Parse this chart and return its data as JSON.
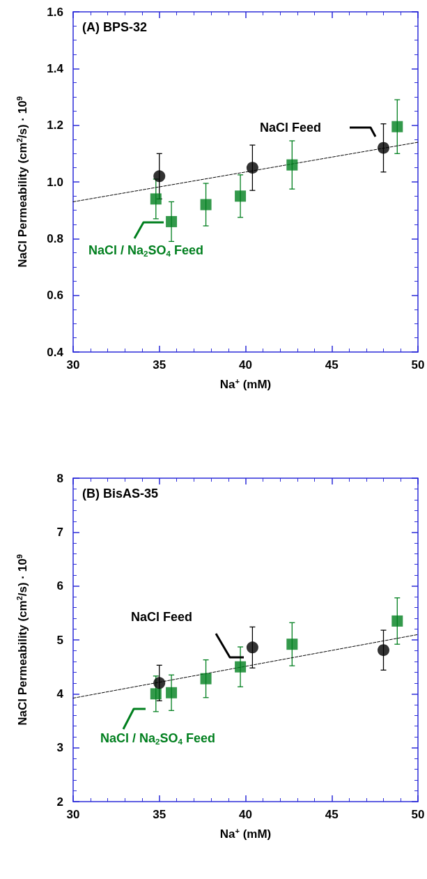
{
  "chart_data": [
    {
      "type": "scatter",
      "title": "(A) BPS-32",
      "xlabel": "Na$^{+}$ (mM)",
      "ylabel": "NaCl Permeability (cm$^{2}$/s) · 10$^{9}$",
      "xlim": [
        30,
        50
      ],
      "xticks": [
        30,
        35,
        40,
        45,
        50
      ],
      "ylim": [
        0.4,
        1.6
      ],
      "yticks": [
        0.4,
        0.6,
        0.8,
        {
          "value": 1,
          "label": "1.0"
        },
        1.2,
        1.4,
        1.6
      ],
      "grid": false,
      "series": [
        {
          "name": "NaCl / Na$_{2}$SO$_{4}$ Feed",
          "color": "#007f1e",
          "marker": "square",
          "x": [
            34.8,
            35.7,
            37.7,
            39.7,
            42.7,
            48.8
          ],
          "values": [
            0.94,
            0.86,
            0.92,
            0.95,
            1.06,
            1.195
          ],
          "errors": [
            0.07,
            0.07,
            0.075,
            0.075,
            0.085,
            0.095
          ]
        },
        {
          "name": "NaCl Feed",
          "color": "#000000",
          "marker": "circle",
          "x": [
            35,
            40.4,
            48
          ],
          "values": [
            1.02,
            1.05,
            1.12
          ],
          "errors": [
            0.08,
            0.08,
            0.085
          ]
        },
        {
          "type": "line",
          "color": "#000000",
          "marker": "none",
          "line_style": "dashed",
          "x": [
            30,
            50
          ],
          "values": [
            0.93,
            1.14
          ]
        }
      ]
    },
    {
      "type": "scatter",
      "title": "(B) BisAS-35",
      "xlabel": "Na$^{+}$ (mM)",
      "ylabel": "NaCl Permeability (cm$^{2}$/s) · 10$^{9}$",
      "xlim": [
        30,
        50
      ],
      "xticks": [
        30,
        35,
        40,
        45,
        50
      ],
      "ylim": [
        2,
        8
      ],
      "yticks": [
        2,
        3,
        4,
        5,
        6,
        7,
        8
      ],
      "grid": false,
      "series": [
        {
          "name": "NaCl / Na$_{2}$SO$_{4}$ Feed",
          "color": "#007f1e",
          "marker": "square",
          "x": [
            34.8,
            35.7,
            37.7,
            39.7,
            42.7,
            48.8
          ],
          "values": [
            4.0,
            4.02,
            4.28,
            4.5,
            4.92,
            5.35
          ],
          "errors": [
            0.33,
            0.33,
            0.35,
            0.37,
            0.4,
            0.43
          ]
        },
        {
          "name": "NaCl Feed",
          "color": "#000000",
          "marker": "circle",
          "x": [
            35,
            40.4,
            48
          ],
          "values": [
            4.2,
            4.86,
            4.81
          ],
          "errors": [
            0.33,
            0.38,
            0.37
          ]
        },
        {
          "type": "line",
          "color": "#000000",
          "marker": "none",
          "line_style": "dashed",
          "x": [
            30,
            50
          ],
          "values": [
            3.92,
            5.1
          ]
        }
      ]
    }
  ]
}
